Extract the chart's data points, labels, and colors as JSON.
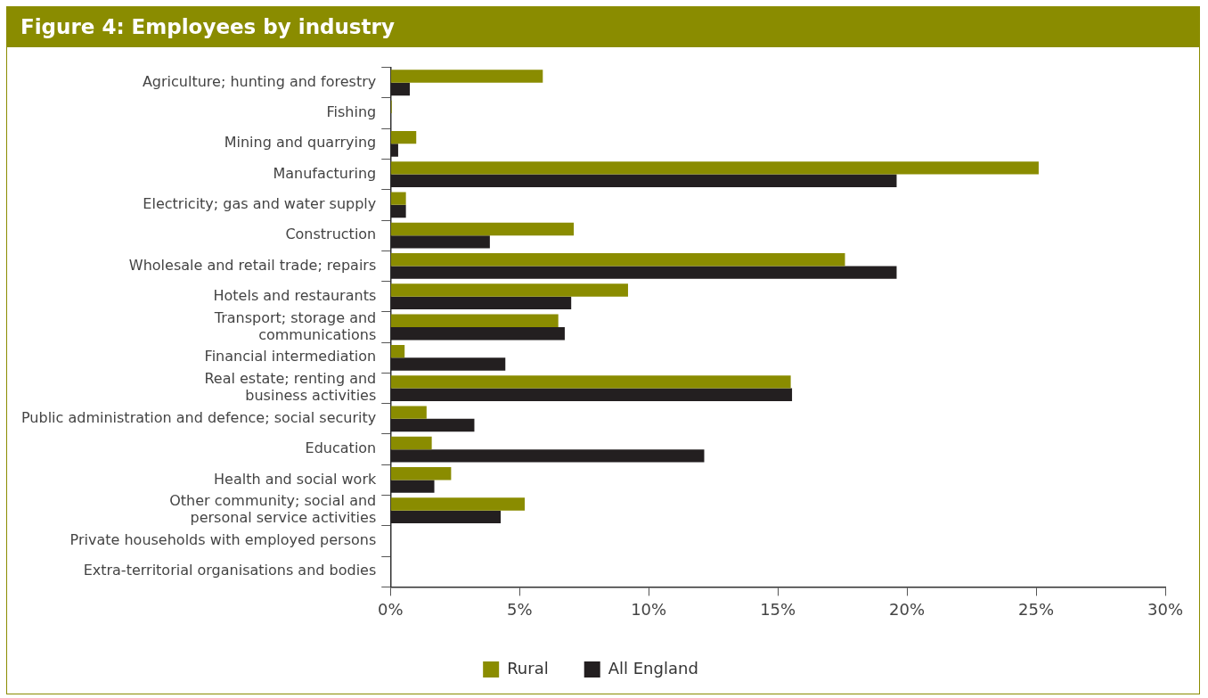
{
  "chart_data": {
    "type": "bar",
    "orientation": "horizontal",
    "title": "Figure 4: Employees by industry",
    "categories": [
      "Agriculture; hunting and forestry",
      "Fishing",
      "Mining and quarrying",
      "Manufacturing",
      "Electricity; gas and water supply",
      "Construction",
      "Wholesale and retail trade; repairs",
      "Hotels and restaurants",
      "Transport; storage and\ncommunications",
      "Financial intermediation",
      "Real estate; renting and\nbusiness activities",
      "Public administration and defence; social security",
      "Education",
      "Health and social work",
      "Other community; social and\npersonal service activities",
      "Private households with employed persons",
      "Extra-territorial organisations and bodies"
    ],
    "series": [
      {
        "name": "Rural",
        "color": "#8a8c00",
        "values": [
          5.9,
          0.05,
          1.0,
          25.1,
          0.6,
          7.1,
          17.6,
          9.2,
          6.5,
          0.55,
          15.5,
          1.4,
          1.6,
          2.35,
          5.2,
          0,
          0
        ]
      },
      {
        "name": "All England",
        "color": "#231f20",
        "values": [
          0.75,
          0,
          0.3,
          19.6,
          0.6,
          3.85,
          19.6,
          7.0,
          6.75,
          4.45,
          15.55,
          3.25,
          12.15,
          1.7,
          4.27,
          0,
          0
        ]
      }
    ],
    "xlim": [
      0,
      30
    ],
    "xticks": [
      {
        "value": 0,
        "label": "0%"
      },
      {
        "value": 5,
        "label": "5%"
      },
      {
        "value": 10,
        "label": "10%"
      },
      {
        "value": 15,
        "label": "15%"
      },
      {
        "value": 20,
        "label": "20%"
      },
      {
        "value": 25,
        "label": "25%"
      },
      {
        "value": 30,
        "label": "30%"
      }
    ],
    "grid": false,
    "legend": "bottom"
  }
}
